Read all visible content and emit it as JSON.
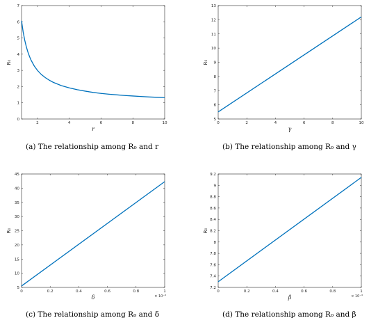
{
  "chart_data": [
    {
      "id": "a",
      "type": "line",
      "caption": "(a) The relationship among R₀ and r",
      "xlabel": "r",
      "ylabel": "R₀",
      "xlim": [
        1,
        10
      ],
      "ylim": [
        0,
        7
      ],
      "xticks": [
        2,
        4,
        6,
        8,
        10
      ],
      "yticks": [
        0,
        1,
        2,
        3,
        4,
        5,
        6,
        7
      ],
      "xtick_labels": [
        "2",
        "4",
        "6",
        "8",
        "10"
      ],
      "ytick_labels": [
        "0",
        "1",
        "2",
        "3",
        "4",
        "5",
        "6",
        "7"
      ],
      "x_exponent": "",
      "series": [
        {
          "x": [
            1,
            1.1,
            1.2,
            1.3,
            1.4,
            1.5,
            1.6,
            1.8,
            2.0,
            2.25,
            2.5,
            2.75,
            3.0,
            3.5,
            4.0,
            4.5,
            5.0,
            5.5,
            6.0,
            6.5,
            7.0,
            7.5,
            8.0,
            8.5,
            9.0,
            9.5,
            10.0
          ],
          "y": [
            6.06,
            5.38,
            4.87,
            4.46,
            4.13,
            3.86,
            3.63,
            3.27,
            3.0,
            2.74,
            2.55,
            2.39,
            2.26,
            2.06,
            1.92,
            1.81,
            1.72,
            1.64,
            1.58,
            1.53,
            1.49,
            1.45,
            1.42,
            1.39,
            1.36,
            1.34,
            1.32
          ]
        }
      ]
    },
    {
      "id": "b",
      "type": "line",
      "caption": "(b) The relationship among R₀ and γ",
      "xlabel": "γ",
      "ylabel": "R₀",
      "xlim": [
        0,
        10
      ],
      "ylim": [
        5,
        13
      ],
      "xticks": [
        0,
        2,
        4,
        6,
        8,
        10
      ],
      "yticks": [
        5,
        6,
        7,
        8,
        9,
        10,
        11,
        12,
        13
      ],
      "xtick_labels": [
        "0",
        "2",
        "4",
        "6",
        "8",
        "10"
      ],
      "ytick_labels": [
        "5",
        "6",
        "7",
        "8",
        "9",
        "10",
        "11",
        "12",
        "13"
      ],
      "x_exponent": "",
      "series": [
        {
          "x": [
            0,
            10
          ],
          "y": [
            5.5,
            12.2
          ]
        }
      ]
    },
    {
      "id": "c",
      "type": "line",
      "caption": "(c) The relationship among R₀ and δ",
      "xlabel": "δ",
      "ylabel": "R₀",
      "xlim": [
        0,
        1
      ],
      "ylim": [
        5,
        45
      ],
      "xticks": [
        0,
        0.2,
        0.4,
        0.6,
        0.8,
        1
      ],
      "yticks": [
        5,
        10,
        15,
        20,
        25,
        30,
        35,
        40,
        45
      ],
      "xtick_labels": [
        "0",
        "0.2",
        "0.4",
        "0.6",
        "0.8",
        "1"
      ],
      "ytick_labels": [
        "5",
        "10",
        "15",
        "20",
        "25",
        "30",
        "35",
        "40",
        "45"
      ],
      "x_exponent": "× 10⁻³",
      "series": [
        {
          "x": [
            0,
            1
          ],
          "y": [
            5.5,
            42.3
          ]
        }
      ]
    },
    {
      "id": "d",
      "type": "line",
      "caption": "(d) The relationship among R₀ and β",
      "xlabel": "β",
      "ylabel": "R₀",
      "xlim": [
        0,
        1
      ],
      "ylim": [
        7.2,
        9.2
      ],
      "xticks": [
        0,
        0.2,
        0.4,
        0.6,
        0.8,
        1
      ],
      "yticks": [
        7.2,
        7.4,
        7.6,
        7.8,
        8.0,
        8.2,
        8.4,
        8.6,
        8.8,
        9.0,
        9.2
      ],
      "xtick_labels": [
        "0",
        "0.2",
        "0.4",
        "0.6",
        "0.8",
        "1"
      ],
      "ytick_labels": [
        "7.2",
        "7.4",
        "7.6",
        "7.8",
        "8",
        "8.2",
        "8.4",
        "8.6",
        "8.8",
        "9",
        "9.2"
      ],
      "x_exponent": "× 10⁻³",
      "series": [
        {
          "x": [
            0,
            1
          ],
          "y": [
            7.3,
            9.14
          ]
        }
      ]
    }
  ],
  "style": {
    "line_color": "#0072bd",
    "axis_color": "#262626"
  }
}
